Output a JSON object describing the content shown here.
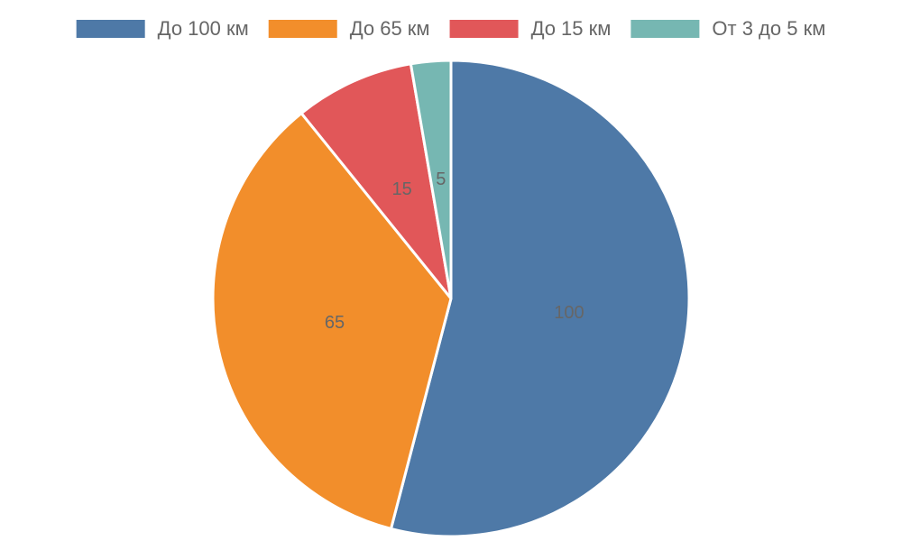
{
  "chart_data": {
    "type": "pie",
    "categories": [
      "До 100 км",
      "До 65 км",
      "До 15 км",
      "От 3 до 5 км"
    ],
    "values": [
      100,
      65,
      15,
      5
    ],
    "colors": [
      "#4e79a7",
      "#f28e2b",
      "#e15759",
      "#76b7b2"
    ],
    "legend": "top"
  }
}
